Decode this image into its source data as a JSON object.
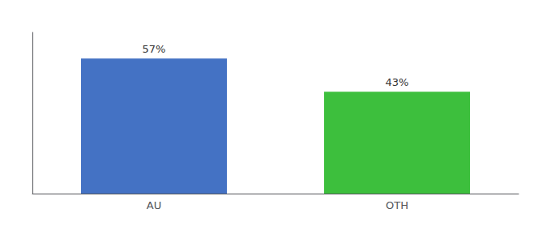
{
  "chart_data": {
    "type": "bar",
    "categories": [
      "AU",
      "OTH"
    ],
    "values": [
      57,
      43
    ],
    "value_labels": [
      "57%",
      "43%"
    ],
    "colors": [
      "#4472C4",
      "#3DBF3D"
    ],
    "ylim": [
      0,
      68
    ],
    "data_labels": true,
    "tick_labels": "x",
    "grid": false
  }
}
